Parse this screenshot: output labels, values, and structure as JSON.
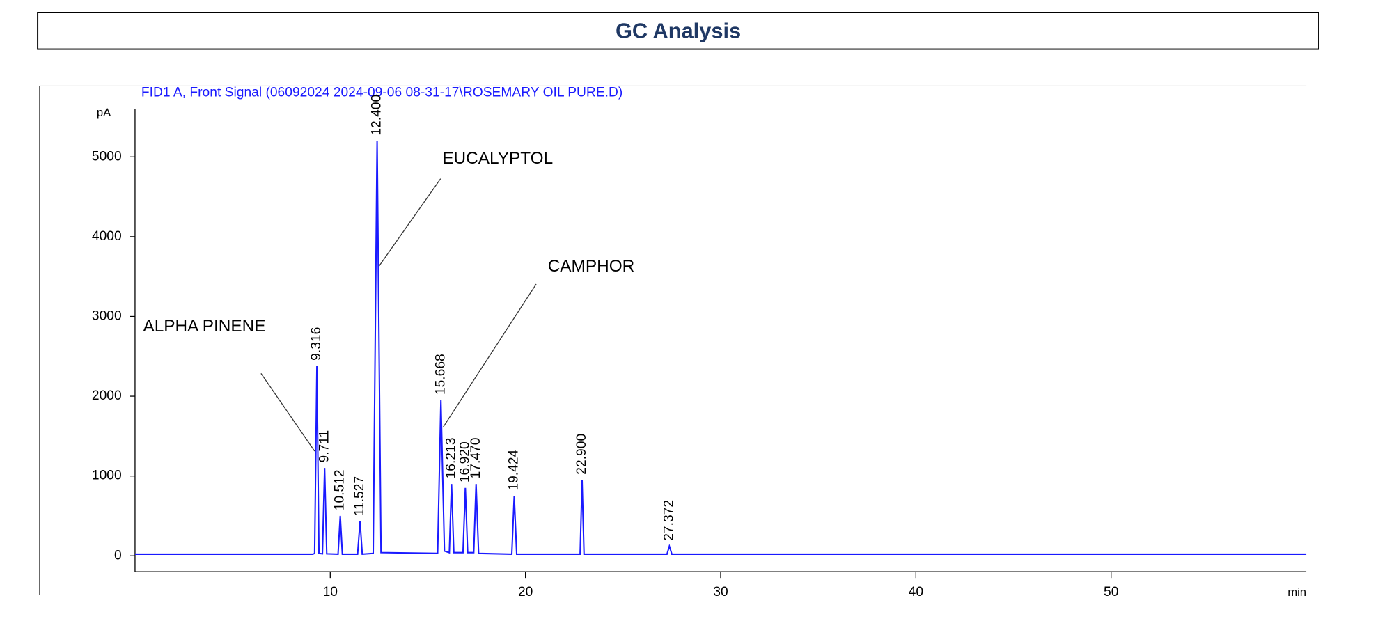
{
  "chart_data": {
    "type": "line",
    "title": "GC Analysis",
    "subtitle": "FID1 A, Front Signal (06092024 2024-09-06 08-31-17\\ROSEMARY OIL PURE.D)",
    "y_label": "pA",
    "x_label": "min",
    "annotations": [
      "ALPHA PINENE",
      "EUCALYPTOL",
      "CAMPHOR"
    ],
    "xlim": [
      0,
      60
    ],
    "ylim": [
      -200,
      5600
    ],
    "xticks": [
      10,
      20,
      30,
      40,
      50
    ],
    "yticks": [
      0,
      1000,
      2000,
      3000,
      4000,
      5000
    ],
    "x": [
      0,
      9.1,
      9.2,
      9.316,
      9.42,
      9.6,
      9.711,
      9.82,
      10.4,
      10.512,
      10.62,
      11.4,
      11.527,
      11.64,
      12.2,
      12.4,
      12.6,
      15.5,
      15.668,
      15.85,
      16.1,
      16.213,
      16.33,
      16.8,
      16.92,
      17.04,
      17.35,
      17.47,
      17.6,
      19.3,
      19.424,
      19.55,
      22.8,
      22.9,
      23.0,
      27.25,
      27.372,
      27.5,
      60
    ],
    "peak_labels": [
      null,
      null,
      null,
      "9.316",
      null,
      null,
      "9.711",
      null,
      null,
      "10.512",
      null,
      null,
      "11.527",
      null,
      null,
      "12.400",
      null,
      null,
      "15.668",
      null,
      null,
      "16.213",
      null,
      null,
      "16.920",
      null,
      null,
      "17.470",
      null,
      null,
      "19.424",
      null,
      null,
      "22.900",
      null,
      null,
      "27.372",
      null,
      null
    ],
    "series": [
      {
        "color": "#1a1aff",
        "values": [
          20,
          20,
          30,
          2380,
          30,
          25,
          1100,
          25,
          20,
          500,
          20,
          20,
          430,
          20,
          30,
          5200,
          40,
          30,
          1950,
          60,
          40,
          900,
          40,
          40,
          850,
          40,
          40,
          900,
          30,
          20,
          750,
          20,
          20,
          950,
          20,
          20,
          120,
          20,
          20
        ]
      }
    ]
  }
}
